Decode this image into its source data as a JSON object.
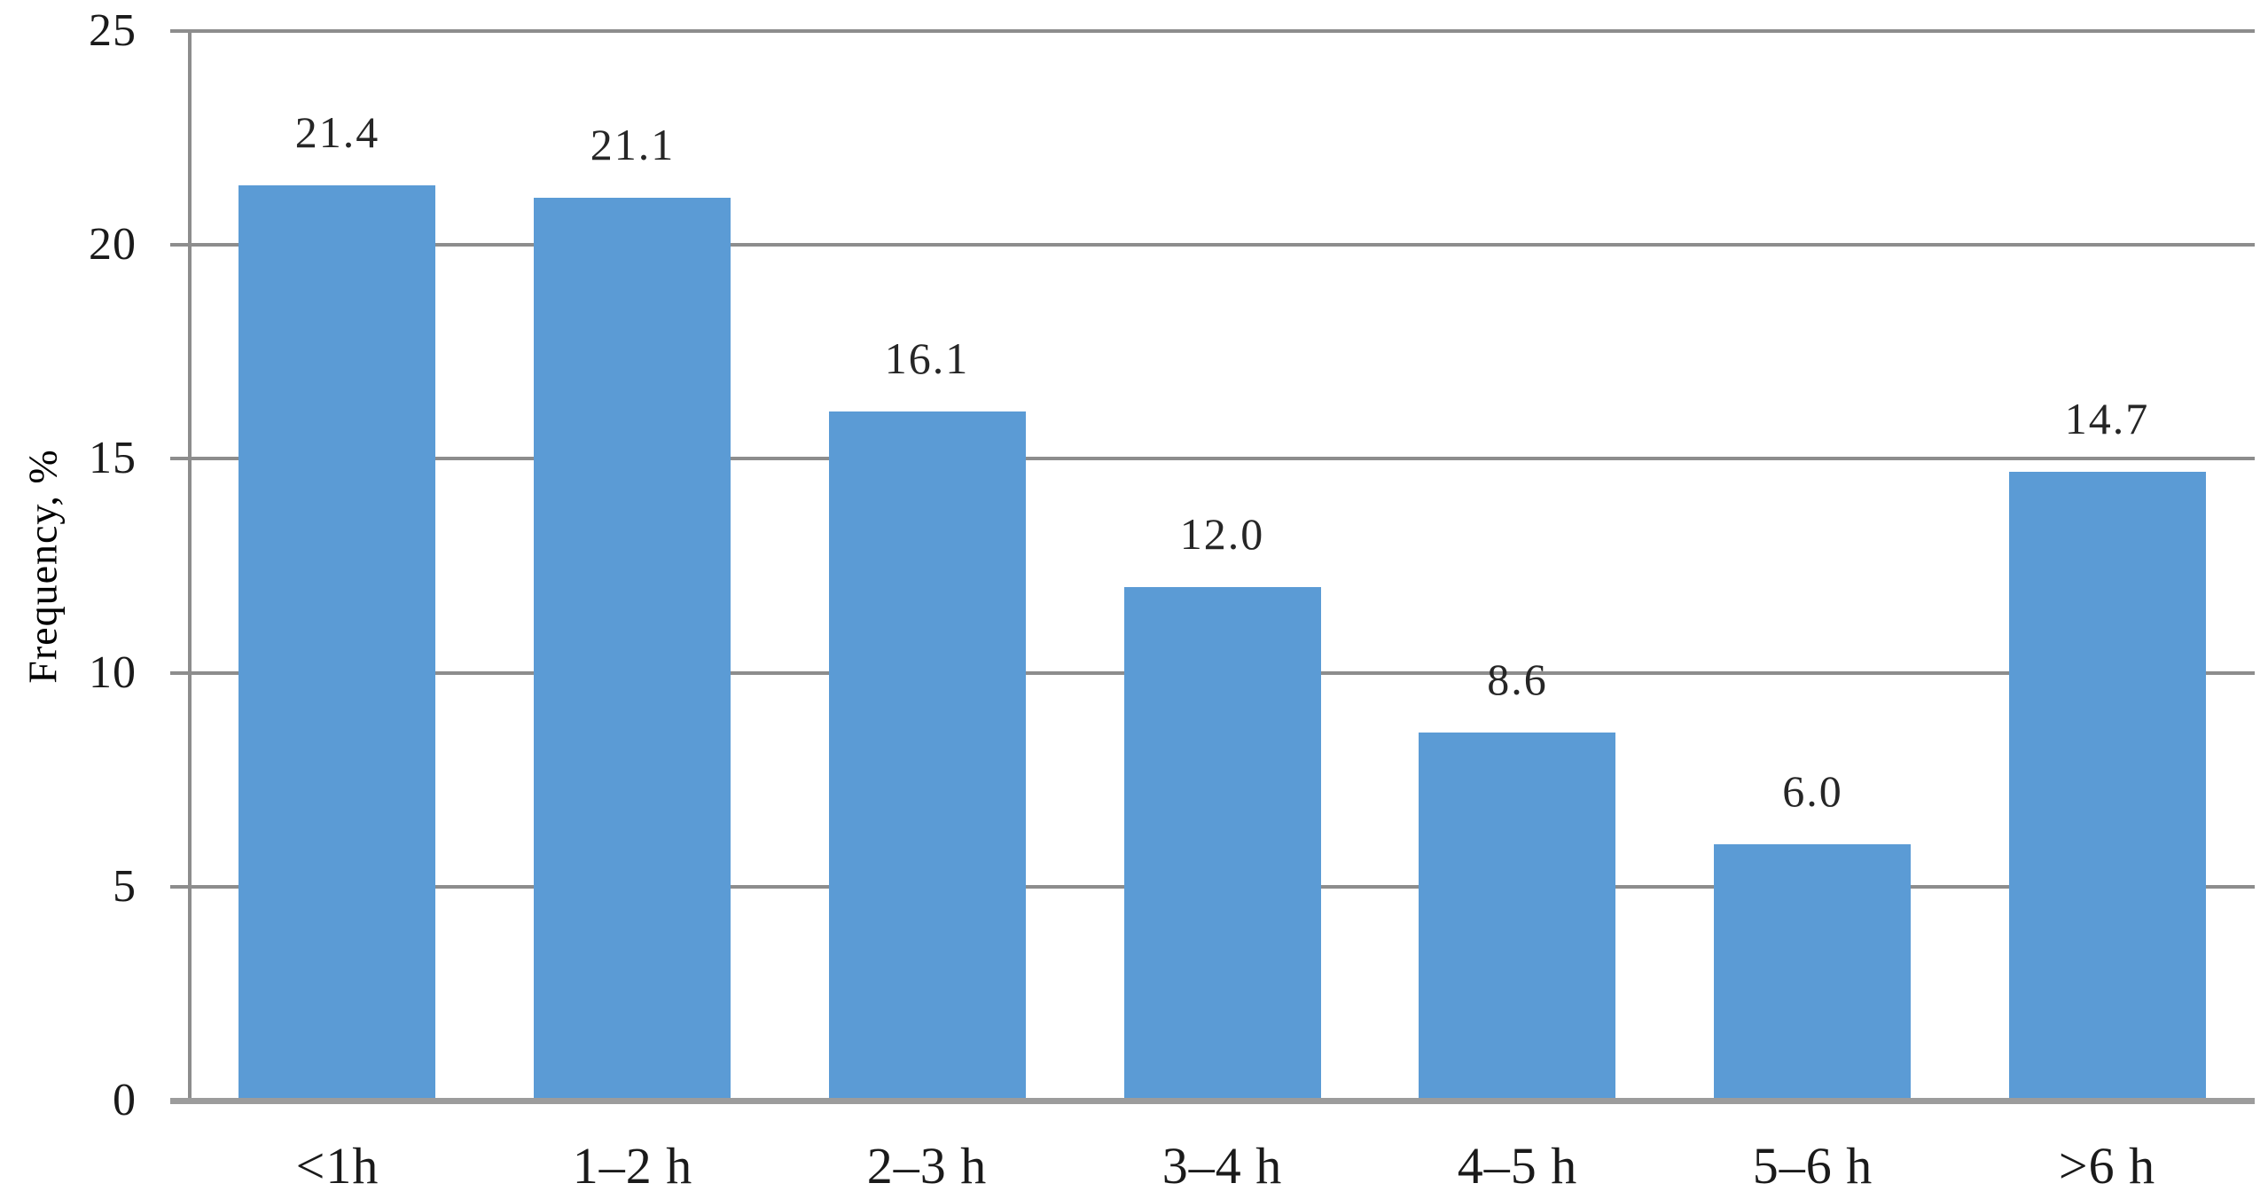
{
  "chart_data": {
    "type": "bar",
    "title": "",
    "xlabel": "",
    "ylabel": "Frequency, %",
    "categories": [
      "<1h",
      "1–2 h",
      "2–3 h",
      "3–4 h",
      "4–5 h",
      "5–6 h",
      ">6 h"
    ],
    "series": [
      {
        "name": "Frequency",
        "values": [
          21.4,
          21.1,
          16.1,
          12.0,
          8.6,
          6.0,
          14.7
        ],
        "value_labels": [
          "21.4",
          "21.1",
          "16.1",
          "12.0",
          "8.6",
          "6.0",
          "14.7"
        ]
      }
    ],
    "ylim": [
      0,
      25
    ],
    "yticks": [
      0,
      5,
      10,
      15,
      20,
      25
    ],
    "ytick_labels": [
      "0",
      "5",
      "10",
      "15",
      "20",
      "25"
    ],
    "grid": "horizontal-major-on",
    "legend_position": "none",
    "colors": {
      "bar": "#5B9BD5",
      "gridline": "#8D8D8D",
      "axis": "#9C9C9C",
      "tick_text": "#1A1A1A",
      "value_text": "#262626",
      "background": "#FFFFFF"
    }
  }
}
